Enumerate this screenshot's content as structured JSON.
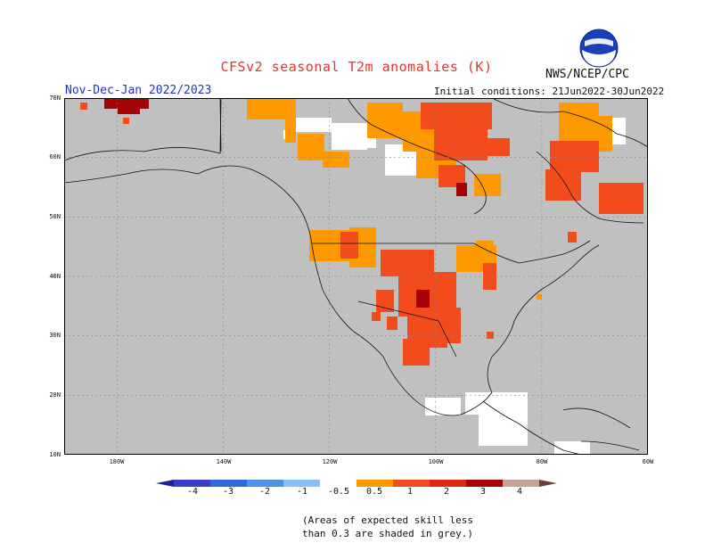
{
  "title": "CFSv2 seasonal T2m anomalies (K)",
  "agency": "NWS/NCEP/CPC",
  "logo_text": "NOAA",
  "season": "Nov-Dec-Jan 2022/2023",
  "initial_conditions": "Initial conditions: 21Jun2022-30Jun2022",
  "lat_labels": [
    "70N",
    "60N",
    "50N",
    "40N",
    "30N",
    "20N",
    "10N"
  ],
  "lon_labels": [
    "180W",
    "140W",
    "120W",
    "100W",
    "80W",
    "60W"
  ],
  "colorbar": {
    "labels": [
      "-4",
      "-3",
      "-2",
      "-1",
      "-0.5",
      "0.5",
      "1",
      "2",
      "3",
      "4"
    ],
    "colors": [
      "#1e1e96",
      "#3c3cc8",
      "#2e6ad8",
      "#4a93e8",
      "#8cc0f5",
      "#ffffff",
      "#ff9900",
      "#f24b1c",
      "#dd2a0b",
      "#a60404",
      "#c8a096",
      "#6e3e3e"
    ]
  },
  "note_line1": "(Areas of expected skill less",
  "note_line2": "than 0.3 are shaded in grey.)",
  "colors": {
    "grey": "#c0c0c0",
    "orange": "#ff9900",
    "red_orange": "#f24b1c",
    "red": "#dd2a0b",
    "dark_red": "#a60404",
    "title": "#e8352a",
    "season": "#1f2fc8"
  }
}
